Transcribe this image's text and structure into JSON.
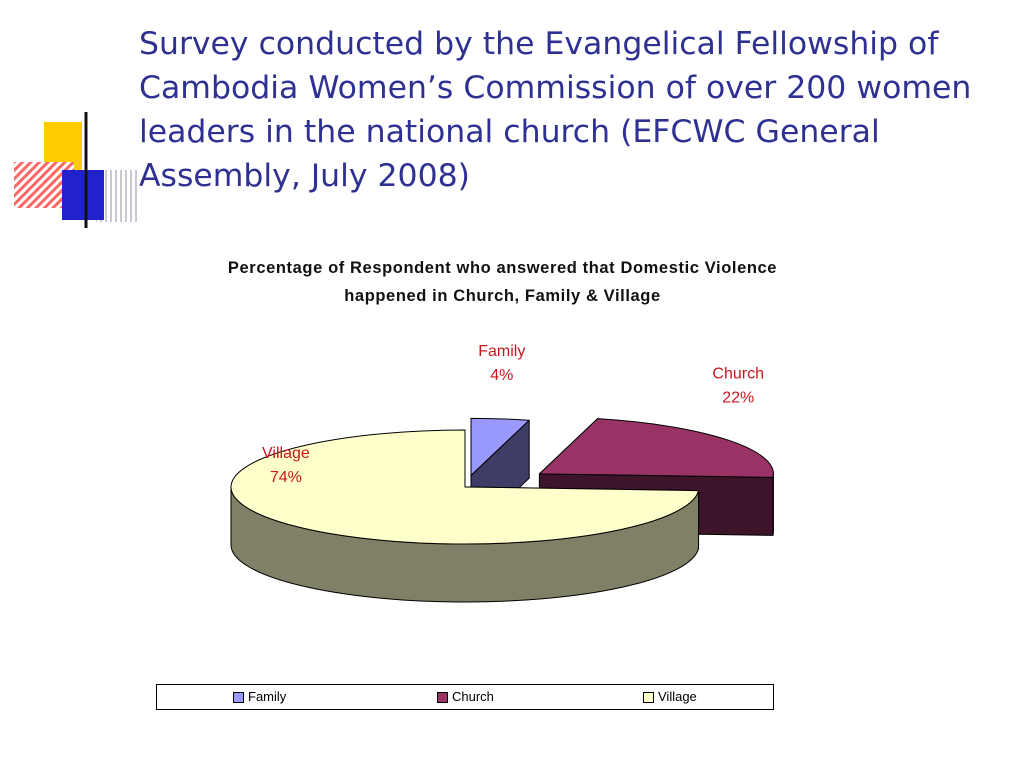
{
  "slide": {
    "title": "Survey conducted by the Evangelical Fellowship of\nCambodia Women’s Commission of  over 200 women\nleaders in the national church (EFCWC General\nAssembly, July 2008)"
  },
  "chart_data": {
    "type": "pie",
    "title": "Percentage of Respondent who answered that Domestic Violence\nhappened in Church, Family & Village",
    "categories": [
      "Family",
      "Church",
      "Village"
    ],
    "values": [
      4,
      22,
      74
    ],
    "value_labels": [
      "4%",
      "22%",
      "74%"
    ],
    "colors": [
      "#9999ff",
      "#993366",
      "#ffffcc"
    ],
    "label_color": "#c8161e",
    "exploded": true,
    "style": "3d",
    "legend_position": "bottom"
  }
}
